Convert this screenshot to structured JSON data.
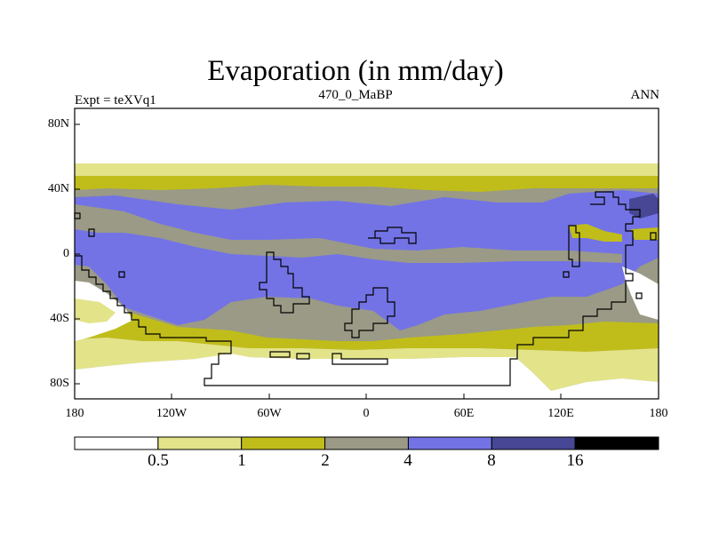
{
  "title": "Evaporation (in mm/day)",
  "left_label": "Expt = teXVq1",
  "center_label": "470_0_MaBP",
  "right_label": "ANN",
  "lat_ticks": [
    "80N",
    "40N",
    "0",
    "40S",
    "80S"
  ],
  "lon_ticks": [
    "180",
    "120W",
    "60W",
    "0",
    "60E",
    "120E",
    "180"
  ],
  "colorbar": {
    "labels": [
      "0.5",
      "1",
      "2",
      "4",
      "8",
      "16"
    ],
    "colors": [
      "#ffffff",
      "#e3e38a",
      "#c0bd1a",
      "#9a9a87",
      "#7373e6",
      "#474795",
      "#000000"
    ]
  },
  "colors": {
    "background": "#ffffff",
    "frame": "#000000",
    "coast": "#000000"
  }
}
